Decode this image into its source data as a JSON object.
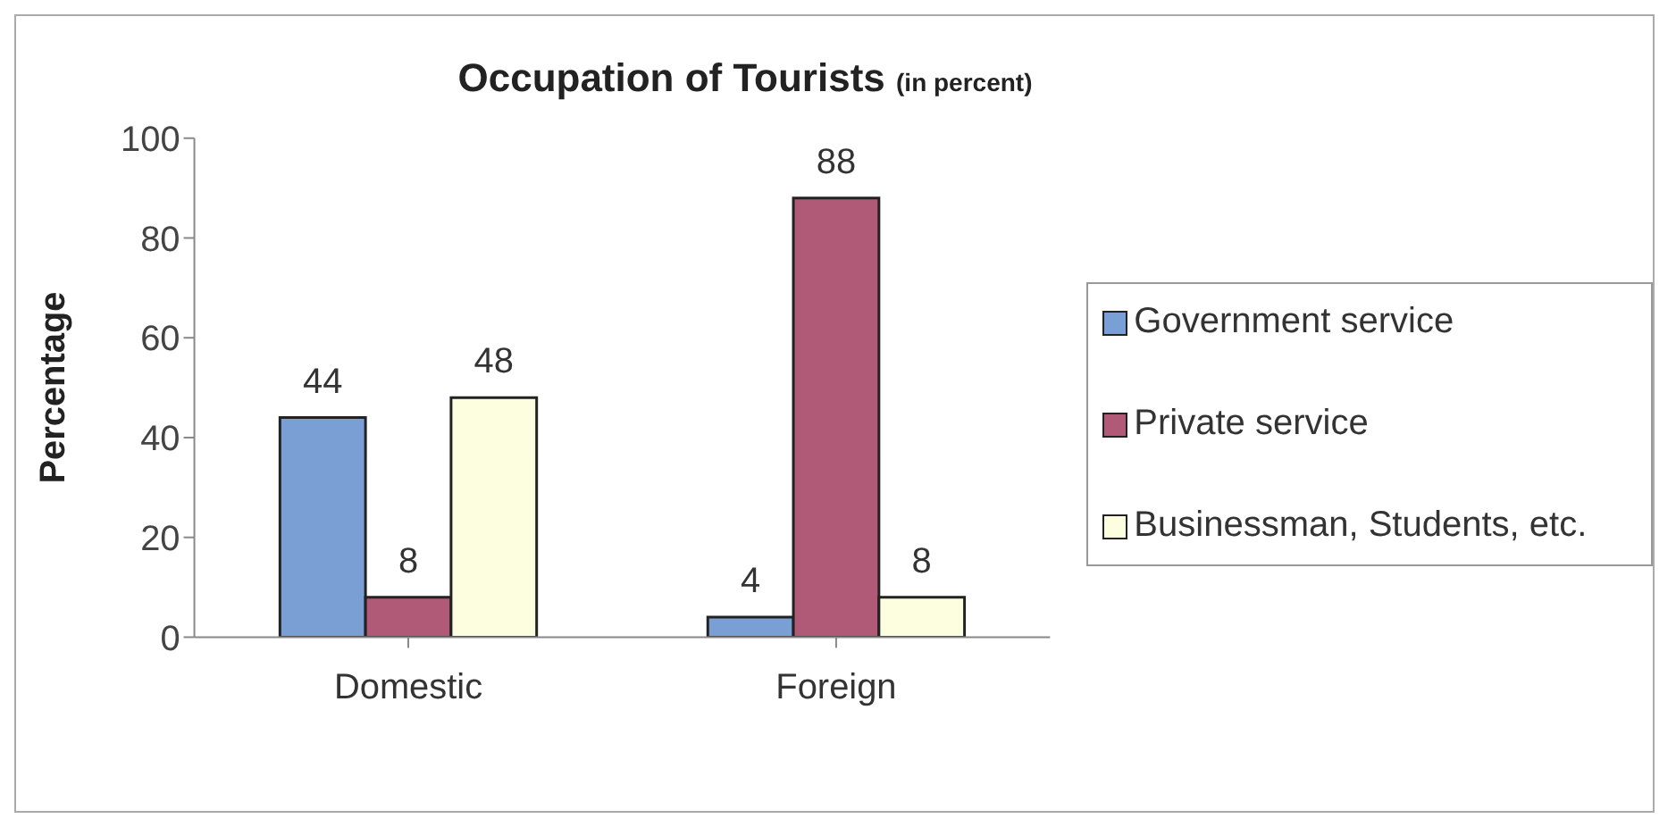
{
  "chart_data": {
    "type": "bar",
    "title": "Occupation of Tourists",
    "subtitle": "(in percent)",
    "ylabel": "Percentage",
    "categories": [
      "Domestic",
      "Foreign"
    ],
    "series": [
      {
        "name": "Government service",
        "color": "#7a9fd4",
        "values": [
          44,
          4
        ]
      },
      {
        "name": "Private service",
        "color": "#b05a78",
        "values": [
          8,
          88
        ]
      },
      {
        "name": "Businessman, Students, etc.",
        "color": "#fdfde0",
        "values": [
          48,
          8
        ]
      }
    ],
    "ylim": [
      0,
      100
    ],
    "yticks": [
      0,
      20,
      40,
      60,
      80,
      100
    ],
    "grid": false,
    "legend": "right",
    "data_labels": true
  }
}
